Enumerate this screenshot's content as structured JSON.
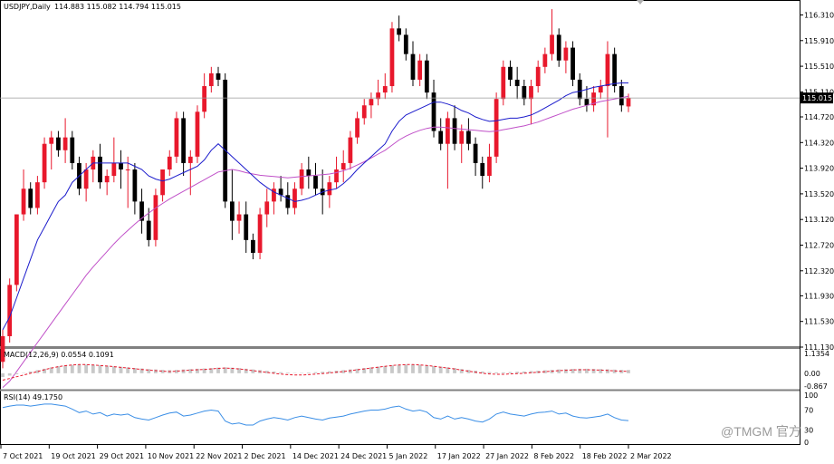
{
  "header": {
    "symbol": "USDJPY,Daily",
    "ohlc": "114.883 115.082 114.794 115.015"
  },
  "price_badge": "115.015",
  "macd_label": "MACD(12,26,9) 0.0554 0.1091",
  "macd_ticks": [
    "1.1354",
    "0.00",
    "-0.867"
  ],
  "rsi_label": "RSI(14) 49.1750",
  "rsi_ticks": [
    "100",
    "70",
    "30",
    "0"
  ],
  "watermark": "@TMGM 官方",
  "colors": {
    "bull": "#e8182c",
    "bear": "#000000",
    "ma_fast": "#1c1ccc",
    "ma_slow": "#c050c8",
    "macd_hist": "#c8c8c8",
    "macd_signal": "#e8182c",
    "rsi": "#3a8ee6",
    "price_line": "#9a9a9a",
    "grid_sep": "#808080",
    "watermark": "#9a9a9a"
  },
  "chart_data": {
    "type": "candlestick",
    "title": "USDJPY,Daily",
    "ylim": [
      111.13,
      116.43
    ],
    "y_ticks": [
      116.31,
      115.91,
      115.51,
      115.11,
      114.72,
      114.32,
      113.92,
      113.52,
      113.12,
      112.72,
      112.32,
      111.93,
      111.53,
      111.13
    ],
    "x_labels": [
      "7 Oct 2021",
      "19 Oct 2021",
      "29 Oct 2021",
      "10 Nov 2021",
      "22 Nov 2021",
      "2 Dec 2021",
      "14 Dec 2021",
      "24 Dec 2021",
      "5 Jan 2022",
      "17 Jan 2022",
      "27 Jan 2022",
      "8 Feb 2022",
      "18 Feb 2022",
      "2 Mar 2022"
    ],
    "last_close": 115.015,
    "ohlc": [
      [
        110.9,
        111.4,
        110.8,
        111.3
      ],
      [
        111.3,
        112.2,
        111.2,
        112.1
      ],
      [
        112.1,
        113.2,
        112.0,
        113.2
      ],
      [
        113.2,
        113.9,
        113.1,
        113.6
      ],
      [
        113.6,
        113.7,
        113.2,
        113.3
      ],
      [
        113.3,
        113.8,
        113.2,
        113.7
      ],
      [
        113.7,
        114.4,
        113.6,
        114.3
      ],
      [
        114.3,
        114.5,
        113.9,
        114.4
      ],
      [
        114.4,
        114.5,
        114.1,
        114.2
      ],
      [
        114.2,
        114.7,
        114.0,
        114.4
      ],
      [
        114.4,
        114.5,
        113.9,
        114.0
      ],
      [
        114.0,
        114.1,
        113.5,
        113.6
      ],
      [
        113.6,
        114.0,
        113.4,
        113.9
      ],
      [
        113.9,
        114.2,
        113.7,
        114.1
      ],
      [
        114.1,
        114.3,
        113.6,
        113.7
      ],
      [
        113.7,
        113.9,
        113.5,
        113.8
      ],
      [
        113.8,
        114.4,
        113.7,
        114.0
      ],
      [
        114.0,
        114.2,
        113.6,
        113.9
      ],
      [
        113.9,
        114.1,
        113.3,
        113.9
      ],
      [
        113.9,
        114.0,
        113.2,
        113.4
      ],
      [
        113.4,
        113.6,
        112.9,
        113.1
      ],
      [
        113.1,
        113.3,
        112.7,
        112.8
      ],
      [
        112.8,
        113.6,
        112.7,
        113.5
      ],
      [
        113.5,
        113.9,
        113.4,
        113.9
      ],
      [
        113.9,
        114.2,
        113.8,
        114.1
      ],
      [
        114.1,
        114.8,
        114.0,
        114.7
      ],
      [
        114.7,
        114.8,
        113.8,
        114.0
      ],
      [
        114.0,
        114.2,
        113.5,
        114.1
      ],
      [
        114.1,
        114.9,
        114.0,
        114.8
      ],
      [
        114.8,
        115.4,
        114.7,
        115.2
      ],
      [
        115.2,
        115.5,
        115.1,
        115.4
      ],
      [
        115.4,
        115.5,
        115.2,
        115.3
      ],
      [
        115.3,
        115.4,
        113.3,
        113.4
      ],
      [
        113.4,
        113.9,
        112.8,
        113.1
      ],
      [
        113.1,
        113.4,
        112.9,
        113.2
      ],
      [
        113.2,
        113.4,
        112.6,
        112.8
      ],
      [
        112.8,
        112.9,
        112.5,
        112.6
      ],
      [
        112.6,
        113.3,
        112.5,
        113.2
      ],
      [
        113.2,
        113.6,
        113.0,
        113.4
      ],
      [
        113.4,
        113.7,
        113.2,
        113.6
      ],
      [
        113.6,
        113.8,
        113.4,
        113.5
      ],
      [
        113.5,
        113.7,
        113.2,
        113.3
      ],
      [
        113.3,
        113.7,
        113.2,
        113.6
      ],
      [
        113.6,
        114.0,
        113.5,
        113.9
      ],
      [
        113.9,
        114.1,
        113.6,
        113.8
      ],
      [
        113.8,
        114.0,
        113.5,
        113.6
      ],
      [
        113.6,
        113.9,
        113.2,
        113.5
      ],
      [
        113.5,
        113.8,
        113.3,
        113.7
      ],
      [
        113.7,
        114.1,
        113.6,
        113.9
      ],
      [
        113.9,
        114.2,
        113.7,
        114.0
      ],
      [
        114.0,
        114.5,
        113.9,
        114.4
      ],
      [
        114.4,
        114.8,
        114.3,
        114.7
      ],
      [
        114.7,
        115.0,
        114.6,
        114.9
      ],
      [
        114.9,
        115.1,
        114.7,
        115.0
      ],
      [
        115.0,
        115.3,
        114.9,
        115.1
      ],
      [
        115.1,
        115.4,
        115.0,
        115.2
      ],
      [
        115.2,
        116.2,
        115.1,
        116.1
      ],
      [
        116.1,
        116.3,
        115.9,
        116.0
      ],
      [
        116.0,
        116.1,
        115.6,
        115.7
      ],
      [
        115.7,
        115.9,
        115.2,
        115.3
      ],
      [
        115.3,
        115.7,
        115.2,
        115.6
      ],
      [
        115.6,
        115.7,
        115.0,
        115.1
      ],
      [
        115.1,
        115.3,
        114.4,
        114.5
      ],
      [
        114.5,
        114.7,
        114.2,
        114.3
      ],
      [
        114.3,
        114.8,
        113.6,
        114.7
      ],
      [
        114.7,
        114.9,
        114.2,
        114.3
      ],
      [
        114.3,
        114.6,
        114.0,
        114.5
      ],
      [
        114.5,
        114.7,
        114.2,
        114.3
      ],
      [
        114.3,
        114.4,
        113.8,
        114.0
      ],
      [
        114.0,
        114.1,
        113.6,
        113.8
      ],
      [
        113.8,
        114.3,
        113.7,
        114.1
      ],
      [
        114.1,
        115.1,
        114.0,
        115.0
      ],
      [
        115.0,
        115.6,
        114.9,
        115.5
      ],
      [
        115.5,
        115.6,
        115.2,
        115.3
      ],
      [
        115.3,
        115.5,
        115.0,
        115.2
      ],
      [
        115.2,
        115.3,
        114.9,
        115.0
      ],
      [
        115.0,
        115.3,
        114.6,
        115.2
      ],
      [
        115.2,
        115.6,
        115.1,
        115.5
      ],
      [
        115.5,
        115.8,
        115.4,
        115.7
      ],
      [
        115.7,
        116.4,
        115.6,
        116.0
      ],
      [
        116.0,
        116.1,
        115.5,
        115.6
      ],
      [
        115.6,
        115.9,
        115.4,
        115.8
      ],
      [
        115.8,
        115.9,
        115.2,
        115.3
      ],
      [
        115.3,
        115.4,
        114.9,
        115.0
      ],
      [
        115.0,
        115.2,
        114.8,
        114.9
      ],
      [
        114.9,
        115.2,
        114.8,
        115.1
      ],
      [
        115.1,
        115.3,
        115.0,
        115.2
      ],
      [
        115.2,
        115.9,
        114.4,
        115.7
      ],
      [
        115.7,
        115.8,
        115.1,
        115.2
      ],
      [
        115.2,
        115.3,
        114.8,
        114.9
      ],
      [
        114.883,
        115.082,
        114.794,
        115.015
      ]
    ],
    "ma_fast": [
      111.4,
      111.6,
      111.9,
      112.2,
      112.5,
      112.8,
      113.0,
      113.2,
      113.4,
      113.5,
      113.7,
      113.8,
      113.9,
      114.0,
      114.0,
      114.0,
      114.0,
      114.0,
      114.0,
      113.95,
      113.9,
      113.8,
      113.75,
      113.72,
      113.75,
      113.8,
      113.85,
      113.9,
      113.95,
      114.05,
      114.2,
      114.3,
      114.2,
      114.1,
      114.0,
      113.9,
      113.8,
      113.7,
      113.62,
      113.55,
      113.5,
      113.45,
      113.4,
      113.42,
      113.45,
      113.5,
      113.55,
      113.58,
      113.6,
      113.68,
      113.78,
      113.9,
      114.0,
      114.1,
      114.2,
      114.3,
      114.5,
      114.65,
      114.75,
      114.8,
      114.85,
      114.9,
      114.95,
      114.95,
      114.92,
      114.88,
      114.82,
      114.78,
      114.72,
      114.68,
      114.65,
      114.66,
      114.68,
      114.7,
      114.7,
      114.72,
      114.75,
      114.8,
      114.86,
      114.92,
      114.98,
      115.05,
      115.1,
      115.12,
      115.15,
      115.18,
      115.2,
      115.22,
      115.24,
      115.25,
      115.25
    ],
    "ma_slow": [
      110.5,
      110.6,
      110.75,
      110.9,
      111.05,
      111.2,
      111.35,
      111.5,
      111.65,
      111.8,
      111.95,
      112.1,
      112.25,
      112.38,
      112.5,
      112.62,
      112.74,
      112.85,
      112.95,
      113.05,
      113.14,
      113.22,
      113.3,
      113.37,
      113.44,
      113.5,
      113.56,
      113.62,
      113.68,
      113.74,
      113.8,
      113.86,
      113.88,
      113.9,
      113.88,
      113.85,
      113.83,
      113.81,
      113.8,
      113.79,
      113.78,
      113.77,
      113.78,
      113.79,
      113.8,
      113.81,
      113.82,
      113.83,
      113.85,
      113.88,
      113.92,
      113.97,
      114.02,
      114.08,
      114.14,
      114.2,
      114.28,
      114.36,
      114.42,
      114.47,
      114.51,
      114.54,
      114.56,
      114.56,
      114.55,
      114.54,
      114.53,
      114.52,
      114.51,
      114.5,
      114.49,
      114.5,
      114.52,
      114.54,
      114.56,
      114.58,
      114.61,
      114.64,
      114.68,
      114.72,
      114.76,
      114.8,
      114.84,
      114.87,
      114.9,
      114.93,
      114.96,
      114.98,
      115.0,
      115.02,
      115.04
    ],
    "macd_signal": [
      -0.4,
      -0.3,
      -0.2,
      -0.1,
      0.0,
      0.1,
      0.2,
      0.3,
      0.38,
      0.44,
      0.48,
      0.5,
      0.5,
      0.48,
      0.45,
      0.42,
      0.38,
      0.34,
      0.3,
      0.26,
      0.22,
      0.18,
      0.15,
      0.12,
      0.1,
      0.12,
      0.15,
      0.18,
      0.2,
      0.22,
      0.25,
      0.28,
      0.3,
      0.28,
      0.25,
      0.2,
      0.15,
      0.1,
      0.05,
      0.0,
      -0.05,
      -0.08,
      -0.1,
      -0.1,
      -0.08,
      -0.05,
      -0.02,
      0.02,
      0.06,
      0.1,
      0.15,
      0.2,
      0.25,
      0.3,
      0.35,
      0.4,
      0.45,
      0.48,
      0.5,
      0.5,
      0.48,
      0.45,
      0.4,
      0.35,
      0.3,
      0.25,
      0.18,
      0.12,
      0.06,
      0.0,
      -0.04,
      -0.06,
      -0.06,
      -0.04,
      -0.02,
      0.0,
      0.03,
      0.06,
      0.09,
      0.12,
      0.15,
      0.17,
      0.19,
      0.2,
      0.2,
      0.19,
      0.18,
      0.16,
      0.14,
      0.12,
      0.11
    ],
    "rsi": [
      75,
      78,
      80,
      80,
      78,
      80,
      82,
      82,
      80,
      78,
      72,
      65,
      68,
      62,
      65,
      58,
      62,
      60,
      62,
      55,
      52,
      50,
      55,
      60,
      64,
      66,
      58,
      60,
      64,
      68,
      70,
      68,
      48,
      42,
      44,
      40,
      40,
      48,
      52,
      55,
      53,
      50,
      55,
      58,
      55,
      52,
      50,
      54,
      56,
      58,
      62,
      65,
      68,
      70,
      70,
      72,
      76,
      78,
      72,
      68,
      70,
      66,
      55,
      52,
      58,
      52,
      55,
      52,
      48,
      46,
      52,
      62,
      66,
      62,
      60,
      58,
      62,
      65,
      66,
      68,
      62,
      64,
      58,
      55,
      54,
      56,
      58,
      62,
      55,
      50,
      49
    ]
  }
}
